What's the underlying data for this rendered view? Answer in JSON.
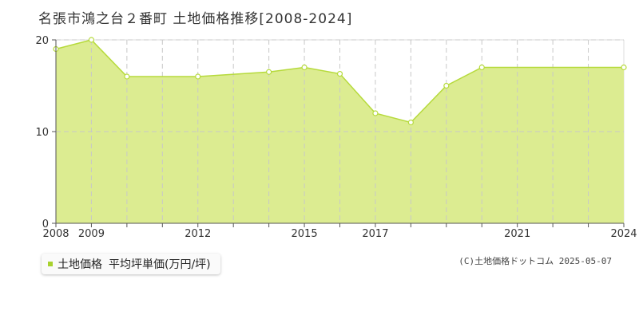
{
  "title": "名張市鴻之台２番町 土地価格推移[2008-2024]",
  "legend": {
    "series_label": "土地価格",
    "unit_label": "平均坪単価(万円/坪)",
    "color": "#a8d22e"
  },
  "copyright": "(C)土地価格ドットコム 2025-05-07",
  "chart_data": {
    "type": "area",
    "title": "名張市鴻之台２番町 土地価格推移[2008-2024]",
    "xlabel": "",
    "ylabel": "",
    "x": [
      2008,
      2009,
      2010,
      2011,
      2012,
      2013,
      2014,
      2015,
      2016,
      2017,
      2018,
      2019,
      2020,
      2021,
      2022,
      2023,
      2024
    ],
    "xticks": [
      2008,
      2009,
      2012,
      2015,
      2017,
      2021,
      2024
    ],
    "series": [
      {
        "name": "土地価格",
        "x": [
          2008,
          2009,
          2010,
          2012,
          2014,
          2015,
          2016,
          2017,
          2018,
          2019,
          2020,
          2024
        ],
        "values": [
          19,
          20,
          16,
          16,
          16.5,
          17,
          16.3,
          12,
          11,
          15,
          17,
          17
        ]
      }
    ],
    "ylim": [
      0,
      20
    ],
    "yticks": [
      0,
      10,
      20
    ],
    "grid": true,
    "colors": {
      "fill": "#dcec91",
      "line": "#b6da3c",
      "grid": "#c8c8c8",
      "axis": "#555555"
    }
  }
}
